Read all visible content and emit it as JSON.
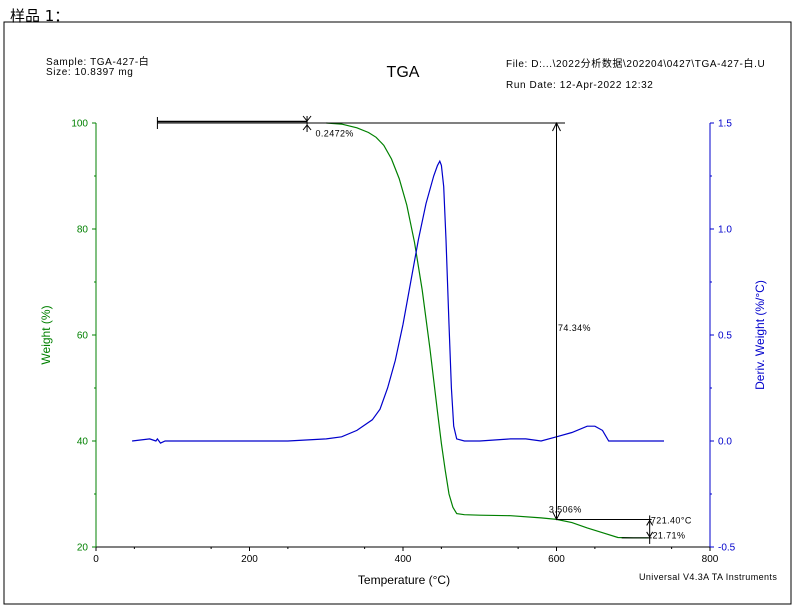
{
  "page": {
    "label": "样品 1："
  },
  "header": {
    "sample": "Sample: TGA-427-白",
    "size": "Size:  10.8397 mg",
    "title": "TGA",
    "file": "File: D:...\\2022分析数据\\202204\\0427\\TGA-427-白.U",
    "run_date": "Run Date: 12-Apr-2022 12:32",
    "software": "Universal V4.3A TA Instruments"
  },
  "colors": {
    "weight": "#008000",
    "deriv": "#0000cc",
    "frame": "#000000"
  },
  "chart_data": {
    "type": "line",
    "title": "TGA",
    "xlabel": "Temperature (°C)",
    "ylabel": "Weight (%)",
    "y2label": "Deriv. Weight (%/°C)",
    "xlim": [
      0,
      800
    ],
    "ylim": [
      20,
      100
    ],
    "y2lim": [
      -0.5,
      1.5
    ],
    "xticks": [
      0,
      200,
      400,
      600,
      800
    ],
    "yticks": [
      20,
      40,
      60,
      80,
      100
    ],
    "y2ticks": [
      -0.5,
      0.0,
      0.5,
      1.0,
      1.5
    ],
    "grid": false,
    "series": [
      {
        "axis": "left",
        "color": "#008000",
        "x": [
          300,
          320,
          340,
          355,
          365,
          375,
          385,
          395,
          405,
          415,
          425,
          435,
          445,
          450,
          455,
          460,
          465,
          470,
          480,
          500,
          540,
          580,
          600,
          620,
          640,
          660,
          680,
          700,
          720
        ],
        "y": [
          100,
          99.8,
          99.1,
          98.2,
          97.3,
          95.8,
          93.2,
          89.5,
          84.5,
          77.5,
          68.5,
          57.5,
          45.5,
          39.5,
          34.5,
          30,
          27.5,
          26.3,
          26.1,
          26.0,
          25.9,
          25.5,
          25.2,
          24.6,
          23.6,
          22.7,
          21.8,
          21.71,
          21.71
        ]
      },
      {
        "axis": "right",
        "color": "#0000cc",
        "x": [
          47,
          70,
          78,
          80,
          84,
          90,
          150,
          250,
          300,
          320,
          340,
          360,
          370,
          380,
          390,
          400,
          410,
          420,
          430,
          440,
          445,
          448,
          450,
          453,
          456,
          460,
          463,
          466,
          470,
          480,
          500,
          540,
          560,
          580,
          600,
          620,
          640,
          650,
          660,
          668,
          675,
          680,
          700,
          740
        ],
        "y": [
          0.0,
          0.01,
          0.0,
          0.01,
          -0.01,
          0.0,
          0.0,
          0.0,
          0.01,
          0.02,
          0.05,
          0.1,
          0.15,
          0.25,
          0.38,
          0.55,
          0.75,
          0.95,
          1.12,
          1.25,
          1.3,
          1.32,
          1.3,
          1.2,
          0.95,
          0.55,
          0.25,
          0.07,
          0.01,
          0.0,
          0.0,
          0.01,
          0.01,
          0.0,
          0.02,
          0.04,
          0.07,
          0.07,
          0.05,
          0.0,
          0.0,
          0.0,
          0.0,
          0.0
        ]
      }
    ],
    "annotations": [
      {
        "text": "0.2472%",
        "x": 286,
        "y": 98.0
      },
      {
        "text": "74.34%",
        "x": 602,
        "y": 61.3
      },
      {
        "text": "3.506%",
        "x": 590,
        "y": 27.1
      },
      {
        "text": "721.40°C",
        "x": 723,
        "y": 25.0
      },
      {
        "text": "21.71%",
        "x": 725,
        "y": 22.2
      }
    ],
    "markers": {
      "step1": {
        "x1": 80,
        "x2": 275,
        "y": 100
      },
      "step2": {
        "x": 600,
        "y_top": 100,
        "y_bottom": 25.2
      },
      "step3": {
        "x1": 600,
        "x2": 721.4,
        "y": 25.2,
        "y_bottom": 21.71
      }
    }
  }
}
